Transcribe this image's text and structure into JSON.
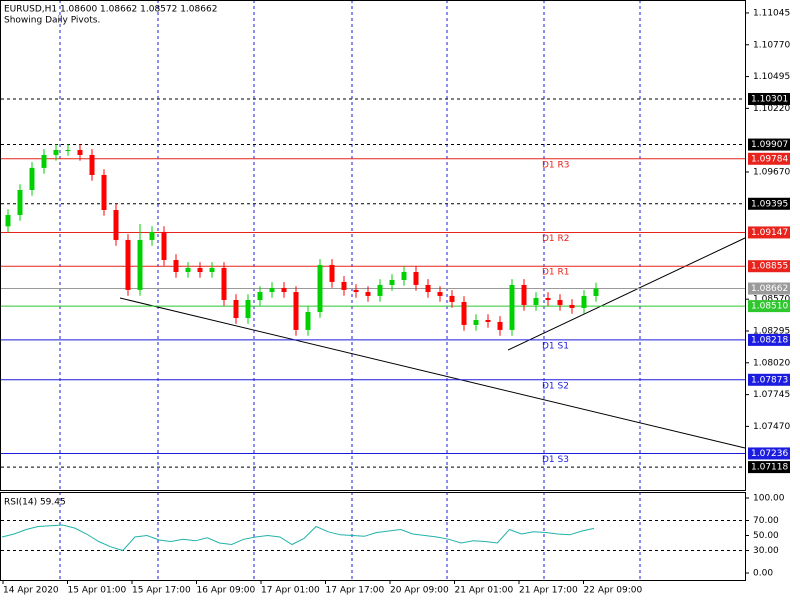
{
  "header": {
    "symbol_line": "EURUSD,H1  1.08600 1.08662 1.08572 1.08662",
    "note": "Showing Daily Pivots."
  },
  "chart_data": [
    {
      "type": "candlestick",
      "up_color": "#00d000",
      "down_color": "#ff0000",
      "open": [
        1.092,
        1.09298,
        1.09514,
        1.09705,
        1.09817,
        1.0986,
        1.0986,
        1.09817,
        1.09644,
        1.09341,
        1.09082,
        1.0865,
        1.09082,
        1.09151,
        1.08909,
        1.08805,
        1.0884,
        1.08805,
        1.0884,
        1.08563,
        1.08407,
        1.08563,
        1.08632,
        1.08667,
        1.08632,
        1.08304,
        1.08459,
        1.08866,
        1.08719,
        1.0865,
        1.08632,
        1.08598,
        1.08693,
        1.08736,
        1.08805,
        1.08693,
        1.08632,
        1.08598,
        1.08546,
        1.08347,
        1.0839,
        1.08373,
        1.08304,
        1.08693,
        1.0852,
        1.0858,
        1.08563,
        1.0852,
        1.08494,
        1.08598
      ],
      "high": [
        1.09348,
        1.09564,
        1.09755,
        1.09867,
        1.0991,
        1.0991,
        1.0991,
        1.09867,
        1.09694,
        1.09391,
        1.09132,
        1.0922,
        1.09201,
        1.09201,
        1.08959,
        1.0889,
        1.0889,
        1.0889,
        1.0889,
        1.08613,
        1.08613,
        1.08682,
        1.08717,
        1.08717,
        1.08682,
        1.08509,
        1.08916,
        1.08916,
        1.08769,
        1.087,
        1.08682,
        1.08743,
        1.08786,
        1.08855,
        1.08855,
        1.08743,
        1.08682,
        1.08648,
        1.08596,
        1.0844,
        1.0844,
        1.08423,
        1.08743,
        1.08743,
        1.0863,
        1.0863,
        1.08613,
        1.0857,
        1.08648,
        1.08712
      ],
      "low": [
        1.0915,
        1.09248,
        1.09464,
        1.09655,
        1.09767,
        1.0981,
        1.09767,
        1.09594,
        1.09291,
        1.09032,
        1.086,
        1.086,
        1.09032,
        1.08859,
        1.08755,
        1.08755,
        1.08755,
        1.08755,
        1.08513,
        1.08357,
        1.08357,
        1.08513,
        1.08582,
        1.08582,
        1.08254,
        1.08254,
        1.08409,
        1.08669,
        1.086,
        1.08582,
        1.08548,
        1.08548,
        1.08643,
        1.08686,
        1.08643,
        1.08582,
        1.08548,
        1.08496,
        1.08297,
        1.08297,
        1.08323,
        1.08254,
        1.08254,
        1.0847,
        1.0847,
        1.08513,
        1.0847,
        1.08444,
        1.08444,
        1.08548
      ],
      "close": [
        1.09298,
        1.09514,
        1.09705,
        1.09817,
        1.0986,
        1.0986,
        1.09817,
        1.09644,
        1.09341,
        1.09082,
        1.0865,
        1.09082,
        1.09151,
        1.08909,
        1.08805,
        1.0884,
        1.08805,
        1.0884,
        1.08563,
        1.08407,
        1.08563,
        1.08632,
        1.08667,
        1.08632,
        1.08304,
        1.08459,
        1.08866,
        1.08719,
        1.0865,
        1.08632,
        1.08598,
        1.08693,
        1.08736,
        1.08805,
        1.08693,
        1.08632,
        1.08598,
        1.08546,
        1.08347,
        1.0839,
        1.08373,
        1.08304,
        1.08693,
        1.0852,
        1.0858,
        1.08563,
        1.0852,
        1.08494,
        1.08598,
        1.08662
      ],
      "ylim": [
        1.0692,
        1.11157
      ],
      "yticks": [
        {
          "value": 1.11045,
          "label": "1.11045"
        },
        {
          "value": 1.1077,
          "label": "1.10770"
        },
        {
          "value": 1.10495,
          "label": "1.10495"
        },
        {
          "value": 1.1022,
          "label": "1.10220"
        },
        {
          "value": 1.0967,
          "label": "1.09670"
        },
        {
          "value": 1.0857,
          "label": "1.08570"
        },
        1.08295,
        {
          "value": 1.0802,
          "label": "1.08020"
        },
        1.07745,
        {
          "value": 1.0747,
          "label": "1.07470"
        }
      ],
      "levels": [
        {
          "value": 1.10301,
          "color": "#000000",
          "style": "dashed"
        },
        {
          "value": 1.09907,
          "color": "#000000",
          "style": "dashed"
        },
        {
          "value": 1.09784,
          "color": "#e8231c",
          "style": "solid",
          "name": "D1 R3"
        },
        {
          "value": 1.09395,
          "color": "#000000",
          "style": "dashed"
        },
        {
          "value": 1.09147,
          "color": "#e8231c",
          "style": "solid",
          "name": "D1 R2"
        },
        {
          "value": 1.08855,
          "color": "#e8231c",
          "style": "solid",
          "name": "D1 R1"
        },
        {
          "value": 1.08662,
          "color": "#9a9a9a",
          "style": "solid"
        },
        {
          "value": 1.0851,
          "label": "1.08510",
          "color": "#2ec82e",
          "style": "solid"
        },
        {
          "value": 1.08218,
          "color": "#1c1ce0",
          "style": "solid",
          "name": "D1 S1"
        },
        {
          "value": 1.07873,
          "color": "#1c1ce0",
          "style": "solid",
          "name": "D1 S2"
        },
        {
          "value": 1.07236,
          "color": "#1c1ce0",
          "style": "solid",
          "name": "D1 S3"
        },
        {
          "value": 1.07118,
          "color": "#000000",
          "style": "dashed"
        }
      ],
      "x_labels": [
        "14 Apr 2020",
        "15 Apr 01:00",
        "15 Apr 17:00",
        "16 Apr 09:00",
        "17 Apr 01:00",
        "17 Apr 17:00",
        "20 Apr 09:00",
        "21 Apr 01:00",
        "21 Apr 17:00",
        "22 Apr 09:00"
      ]
    },
    {
      "type": "line",
      "title": "RSI(14) 59.45",
      "color": "#20b2aa",
      "values": [
        48,
        52,
        58,
        62,
        63,
        64,
        60,
        52,
        42,
        35,
        30,
        48,
        50,
        44,
        42,
        45,
        43,
        47,
        40,
        38,
        45,
        48,
        50,
        48,
        38,
        46,
        62,
        55,
        51,
        50,
        49,
        54,
        56,
        58,
        52,
        50,
        48,
        45,
        40,
        43,
        42,
        40,
        58,
        52,
        55,
        54,
        52,
        51,
        56,
        59.45
      ],
      "ylim": [
        -9.3,
        108
      ],
      "yticks": [
        {
          "value": 100,
          "label": "100.00"
        },
        {
          "value": 70,
          "label": "70.00"
        },
        {
          "value": 50,
          "label": "50.00"
        },
        {
          "value": 30,
          "label": "30.00"
        },
        {
          "value": 0,
          "label": "0.00"
        }
      ],
      "levels": [
        70,
        30
      ]
    }
  ]
}
